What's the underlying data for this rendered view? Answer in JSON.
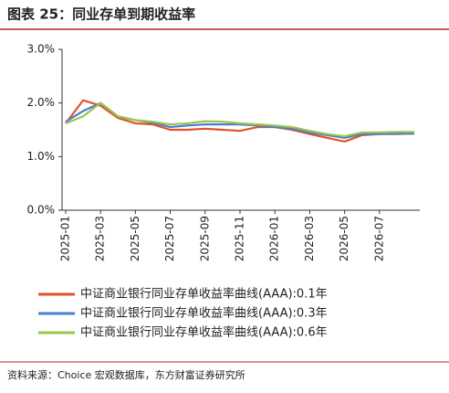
{
  "chart_data": {
    "type": "line",
    "title": "图表 25：同业存单到期收益率",
    "source": "资料来源：Choice 宏观数据库，东方财富证券研究所",
    "x": [
      "2025-01",
      null,
      "2025-03",
      null,
      "2025-05",
      null,
      "2025-07",
      null,
      "2025-09",
      null,
      "2025-11",
      null,
      "2026-01",
      null,
      "2026-03",
      null,
      "2026-05",
      null,
      "2026-07",
      null,
      null
    ],
    "series": [
      {
        "name": "中证商业银行同业存单收益率曲线(AAA):0.1年",
        "color": "#e2522a",
        "values": [
          1.62,
          2.05,
          1.95,
          1.72,
          1.62,
          1.6,
          1.5,
          1.5,
          1.52,
          1.5,
          1.48,
          1.55,
          1.55,
          1.5,
          1.42,
          1.35,
          1.28,
          1.4,
          1.42,
          1.42,
          1.43
        ]
      },
      {
        "name": "中证商业银行同业存单收益率曲线(AAA):0.3年",
        "color": "#4a7fd0",
        "values": [
          1.65,
          1.85,
          2.0,
          1.75,
          1.68,
          1.63,
          1.55,
          1.58,
          1.6,
          1.6,
          1.6,
          1.58,
          1.55,
          1.52,
          1.45,
          1.4,
          1.35,
          1.42,
          1.42,
          1.43,
          1.43
        ]
      },
      {
        "name": "中证商业银行同业存单收益率曲线(AAA):0.6年",
        "color": "#9bc54a",
        "values": [
          1.62,
          1.75,
          2.0,
          1.75,
          1.68,
          1.65,
          1.6,
          1.62,
          1.66,
          1.65,
          1.62,
          1.6,
          1.58,
          1.55,
          1.48,
          1.42,
          1.38,
          1.45,
          1.45,
          1.46,
          1.46
        ]
      }
    ],
    "ylim": [
      0,
      3
    ],
    "yticks": [
      {
        "value": 0,
        "label": "0.0%"
      },
      {
        "value": 1,
        "label": "1.0%"
      },
      {
        "value": 2,
        "label": "2.0%"
      },
      {
        "value": 3,
        "label": "3.0%"
      }
    ],
    "grid": false
  }
}
